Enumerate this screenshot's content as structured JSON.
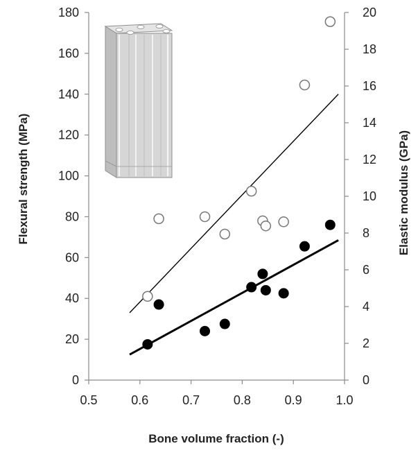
{
  "chart_data": {
    "type": "scatter",
    "xlabel": "Bone volume fraction (-)",
    "ylabel_left": "Flexural strength (MPa)",
    "ylabel_right": "Elastic modulus (GPa)",
    "xlim": [
      0.5,
      1.0
    ],
    "ylim_left": [
      0,
      180
    ],
    "ylim_right": [
      0,
      20
    ],
    "x_ticks": [
      "0.5",
      "0.6",
      "0.7",
      "0.8",
      "0.9",
      "1.0"
    ],
    "y_left_ticks": [
      "0",
      "20",
      "40",
      "60",
      "80",
      "100",
      "120",
      "140",
      "160",
      "180"
    ],
    "y_right_ticks": [
      "0",
      "2",
      "4",
      "6",
      "8",
      "10",
      "12",
      "14",
      "16",
      "18",
      "20"
    ],
    "grid": false,
    "legend": "none",
    "series": [
      {
        "marker": "open-circle",
        "axis": "left",
        "color": "#777777",
        "points": [
          {
            "x": 0.615,
            "y": 41
          },
          {
            "x": 0.637,
            "y": 79
          },
          {
            "x": 0.727,
            "y": 80
          },
          {
            "x": 0.766,
            "y": 71.5
          },
          {
            "x": 0.818,
            "y": 92.5
          },
          {
            "x": 0.84,
            "y": 78
          },
          {
            "x": 0.846,
            "y": 75.5
          },
          {
            "x": 0.881,
            "y": 77.5
          },
          {
            "x": 0.922,
            "y": 144.5
          },
          {
            "x": 0.972,
            "y": 175.5
          }
        ],
        "trendline": {
          "x1": 0.58,
          "y1": 33,
          "x2": 0.988,
          "y2": 140
        }
      },
      {
        "marker": "filled-circle",
        "axis": "left",
        "color": "#000000",
        "points": [
          {
            "x": 0.615,
            "y": 17.5
          },
          {
            "x": 0.637,
            "y": 37
          },
          {
            "x": 0.727,
            "y": 24
          },
          {
            "x": 0.766,
            "y": 27.5
          },
          {
            "x": 0.818,
            "y": 45.5
          },
          {
            "x": 0.84,
            "y": 52
          },
          {
            "x": 0.846,
            "y": 44
          },
          {
            "x": 0.881,
            "y": 42.5
          },
          {
            "x": 0.922,
            "y": 65.5
          },
          {
            "x": 0.972,
            "y": 76
          }
        ],
        "trendline": {
          "x1": 0.58,
          "y1": 12.5,
          "x2": 0.988,
          "y2": 68.5
        }
      }
    ]
  },
  "inset": {
    "icon": "porous-block-icon",
    "colors": {
      "face": "#d8d8d8",
      "shade": "#b4b4b4",
      "edge": "#8e8e8e"
    }
  }
}
